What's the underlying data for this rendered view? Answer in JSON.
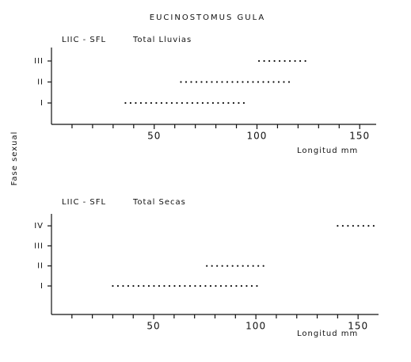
{
  "title": "EUCINOSTOMUS GULA",
  "ylabel": "Fase sexual",
  "chart_data": [
    {
      "type": "range",
      "title": "LIIC - SFL",
      "subtitle": "Total Lluvias",
      "xlabel": "Longitud mm",
      "categories": [
        "I",
        "II",
        "III"
      ],
      "values": [
        [
          36,
          96
        ],
        [
          63,
          117
        ],
        [
          101,
          126
        ]
      ],
      "color": "#111111",
      "xlim": [
        0,
        158
      ],
      "xticks": [
        50,
        100,
        150
      ],
      "xminorticks": [
        10,
        20,
        30,
        40,
        60,
        70,
        80,
        90,
        110,
        120,
        130,
        140
      ]
    },
    {
      "type": "range",
      "title": "LIIC - SFL",
      "subtitle": "Total Secas",
      "xlabel": "Longitud mm",
      "categories": [
        "I",
        "II",
        "III",
        "IV"
      ],
      "values": [
        [
          30,
          102
        ],
        [
          76,
          105
        ],
        null,
        [
          140,
          158
        ]
      ],
      "color": "#111111",
      "xlim": [
        0,
        160
      ],
      "xticks": [
        50,
        100,
        150
      ],
      "xminorticks": [
        10,
        20,
        30,
        40,
        60,
        70,
        80,
        90,
        110,
        120,
        130,
        140
      ]
    }
  ]
}
